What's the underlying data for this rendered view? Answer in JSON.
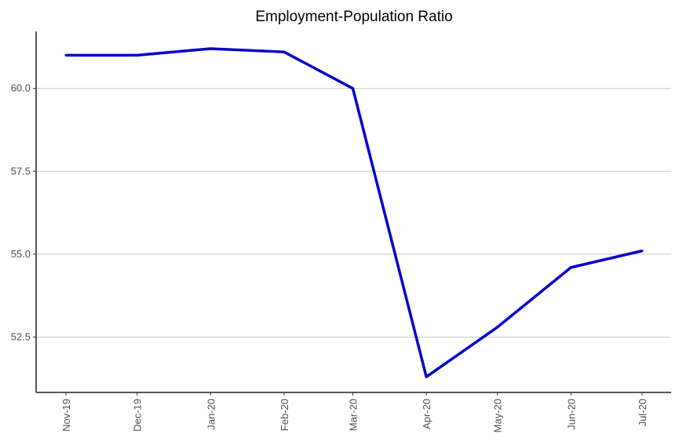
{
  "chart_data": {
    "type": "line",
    "title": "Employment-Population Ratio",
    "xlabel": "",
    "ylabel": "",
    "x": [
      "Nov-19",
      "Dec-19",
      "Jan-20",
      "Feb-20",
      "Mar-20",
      "Apr-20",
      "May-20",
      "Jun-20",
      "Jul-20"
    ],
    "x_days": [
      0,
      30,
      61,
      92,
      121,
      152,
      182,
      213,
      243
    ],
    "series": [
      {
        "name": "Employment-Population Ratio",
        "color": "#0000cc",
        "values": [
          61.0,
          61.0,
          61.2,
          61.1,
          60.0,
          51.3,
          52.8,
          54.6,
          55.1
        ]
      }
    ],
    "yticks": [
      52.5,
      55.0,
      57.5,
      60.0
    ],
    "ytick_labels": [
      "52.5",
      "55.0",
      "57.5",
      "60.0"
    ],
    "ylim": [
      50.83,
      61.72
    ],
    "grid": "horizontal major",
    "legend": "none"
  }
}
